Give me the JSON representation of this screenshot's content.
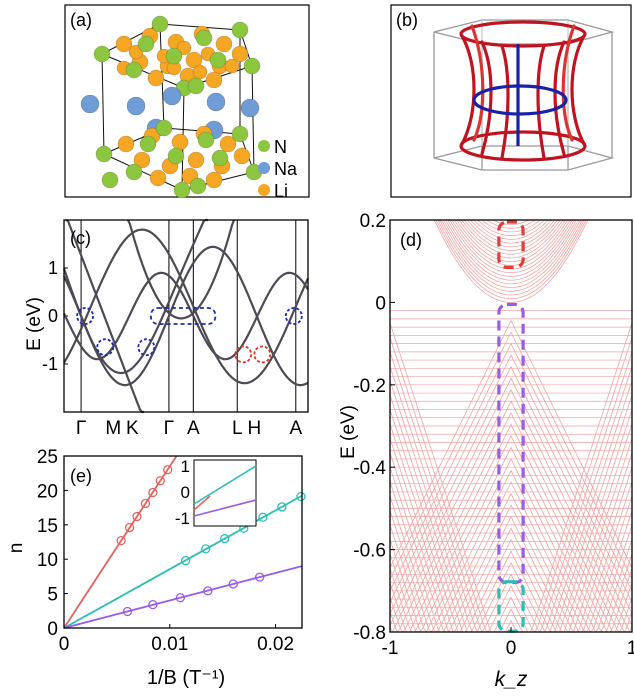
{
  "figure": {
    "panel_a": {
      "label": "(a)",
      "legend": [
        {
          "label": "N",
          "color": "#8cc63f"
        },
        {
          "label": "Na",
          "color": "#6f9bd6"
        },
        {
          "label": "Li",
          "color": "#f5a623"
        }
      ]
    },
    "panel_b": {
      "label": "(b)"
    },
    "panel_c": {
      "label": "(c)",
      "ylabel": "E (eV)",
      "yticks": [
        "1",
        "0",
        "-1"
      ],
      "kpoints": [
        "Γ",
        "M",
        "K",
        "Γ",
        "A",
        "L",
        "H",
        "A"
      ]
    },
    "panel_d": {
      "label": "(d)",
      "ylabel": "E (eV)",
      "xlabel": "k_z",
      "yticks": [
        "0.2",
        "0",
        "-0.2",
        "-0.4",
        "-0.6",
        "-0.8"
      ],
      "xticks": [
        "-1",
        "0",
        "1"
      ]
    },
    "panel_e": {
      "label": "(e)",
      "ylabel": "n",
      "xlabel": "1/B (T⁻¹)",
      "yticks": [
        "25",
        "20",
        "15",
        "10",
        "5",
        "0"
      ],
      "xticks": [
        "0",
        "0.01",
        "0.02"
      ],
      "inset_yticks": [
        "1",
        "0",
        "-1"
      ]
    }
  },
  "chart_data": [
    {
      "type": "line",
      "panel": "(e)",
      "xlabel": "1/B (T⁻¹)",
      "ylabel": "n",
      "xlim": [
        0,
        0.0225
      ],
      "ylim": [
        0,
        25
      ],
      "series": [
        {
          "color": "#e8615f",
          "slope": 2350,
          "points": [
            [
              0.0054,
              12.7
            ],
            [
              0.0062,
              14.6
            ],
            [
              0.0069,
              16.2
            ],
            [
              0.0077,
              18.1
            ],
            [
              0.0084,
              19.7
            ],
            [
              0.0091,
              21.4
            ],
            [
              0.0098,
              23.0
            ]
          ]
        },
        {
          "color": "#2bbfb3",
          "slope": 855,
          "points": [
            [
              0.0115,
              9.8
            ],
            [
              0.0134,
              11.5
            ],
            [
              0.0152,
              13.0
            ],
            [
              0.017,
              14.5
            ],
            [
              0.0188,
              16.1
            ],
            [
              0.0206,
              17.6
            ],
            [
              0.0224,
              19.1
            ]
          ]
        },
        {
          "color": "#9a5be8",
          "slope": 400,
          "points": [
            [
              0.006,
              2.4
            ],
            [
              0.0084,
              3.4
            ],
            [
              0.011,
              4.4
            ],
            [
              0.0136,
              5.4
            ],
            [
              0.016,
              6.4
            ],
            [
              0.0185,
              7.4
            ]
          ]
        }
      ]
    }
  ]
}
